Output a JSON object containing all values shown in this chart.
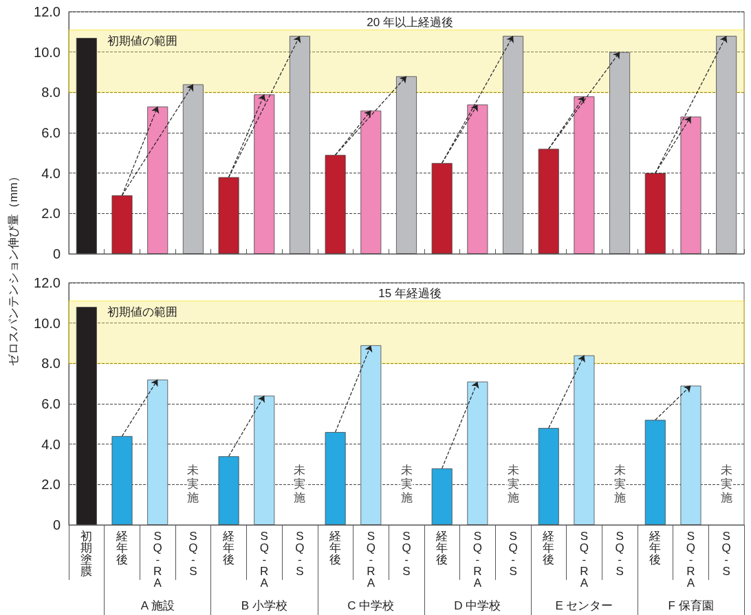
{
  "chart_data": [
    {
      "type": "bar",
      "title": "20 年以上経過後",
      "ylabel": "ゼロスパンテンション伸び量（mm）",
      "categories": [
        "初期塗膜",
        "経年後",
        "SQ-RA",
        "SQ-S",
        "経年後",
        "SQ-RA",
        "SQ-S",
        "経年後",
        "SQ-RA",
        "SQ-S",
        "経年後",
        "SQ-RA",
        "SQ-S",
        "経年後",
        "SQ-RA",
        "SQ-S",
        "経年後",
        "SQ-RA",
        "SQ-S"
      ],
      "values": [
        10.7,
        2.9,
        7.3,
        8.4,
        3.8,
        7.9,
        10.8,
        4.9,
        7.1,
        8.8,
        4.5,
        7.4,
        10.8,
        5.2,
        7.8,
        10.0,
        4.0,
        6.8,
        10.8
      ],
      "colors": [
        "#231f20",
        "#be1e2d",
        "#f088b8",
        "#bcbdc1",
        "#be1e2d",
        "#f088b8",
        "#bcbdc1",
        "#be1e2d",
        "#f088b8",
        "#bcbdc1",
        "#be1e2d",
        "#f088b8",
        "#bcbdc1",
        "#be1e2d",
        "#f088b8",
        "#bcbdc1",
        "#be1e2d",
        "#f088b8",
        "#bcbdc1"
      ],
      "ylim": [
        0,
        12
      ],
      "yticks": [
        0,
        {
          "value": 2,
          "label": "2.0"
        },
        {
          "value": 4,
          "label": "4.0"
        },
        {
          "value": 6,
          "label": "6.0"
        },
        {
          "value": 8,
          "label": "8.0"
        },
        {
          "value": 10,
          "label": "10.0"
        },
        {
          "value": 12,
          "label": "12.0"
        }
      ],
      "bands": [
        {
          "axis": "y",
          "from": 8,
          "to": 11.1,
          "label": "初期値の範囲",
          "color": "#f7e96a"
        }
      ],
      "grid": "y",
      "tick_labels": "y"
    },
    {
      "type": "bar",
      "title": "15 年経過後",
      "categories": [
        "初期塗膜",
        "経年後",
        "SQ-RA",
        "SQ-S",
        "経年後",
        "SQ-RA",
        "SQ-S",
        "経年後",
        "SQ-RA",
        "SQ-S",
        "経年後",
        "SQ-RA",
        "SQ-S",
        "経年後",
        "SQ-RA",
        "SQ-S",
        "経年後",
        "SQ-RA",
        "SQ-S"
      ],
      "values": [
        10.8,
        4.4,
        7.2,
        null,
        3.4,
        6.4,
        null,
        4.6,
        8.9,
        null,
        2.8,
        7.1,
        null,
        4.8,
        8.4,
        null,
        5.2,
        6.9,
        null
      ],
      "value_labels": [
        null,
        null,
        null,
        "未実施",
        null,
        null,
        "未実施",
        null,
        null,
        "未実施",
        null,
        null,
        "未実施",
        null,
        null,
        "未実施",
        null,
        null,
        "未実施"
      ],
      "colors": [
        "#231f20",
        "#27a8e0",
        "#a8dff8",
        "#bcbdc1",
        "#27a8e0",
        "#a8dff8",
        "#bcbdc1",
        "#27a8e0",
        "#a8dff8",
        "#bcbdc1",
        "#27a8e0",
        "#a8dff8",
        "#bcbdc1",
        "#27a8e0",
        "#a8dff8",
        "#bcbdc1",
        "#27a8e0",
        "#a8dff8",
        "#bcbdc1"
      ],
      "ylim": [
        0,
        12
      ],
      "yticks": [
        0,
        {
          "value": 2,
          "label": "2.0"
        },
        {
          "value": 4,
          "label": "4.0"
        },
        {
          "value": 6,
          "label": "6.0"
        },
        {
          "value": 8,
          "label": "8.0"
        },
        {
          "value": 10,
          "label": "10.0"
        },
        {
          "value": 12,
          "label": "12.0"
        }
      ],
      "bands": [
        {
          "axis": "y",
          "from": 8,
          "to": 11.1,
          "label": "初期値の範囲",
          "color": "#f7e96a"
        }
      ],
      "annotations": [
        "A 施設",
        "B 小学校",
        "C 中学校",
        "D 中学校",
        "E センター",
        "F 保育園"
      ],
      "grid": "y"
    }
  ]
}
